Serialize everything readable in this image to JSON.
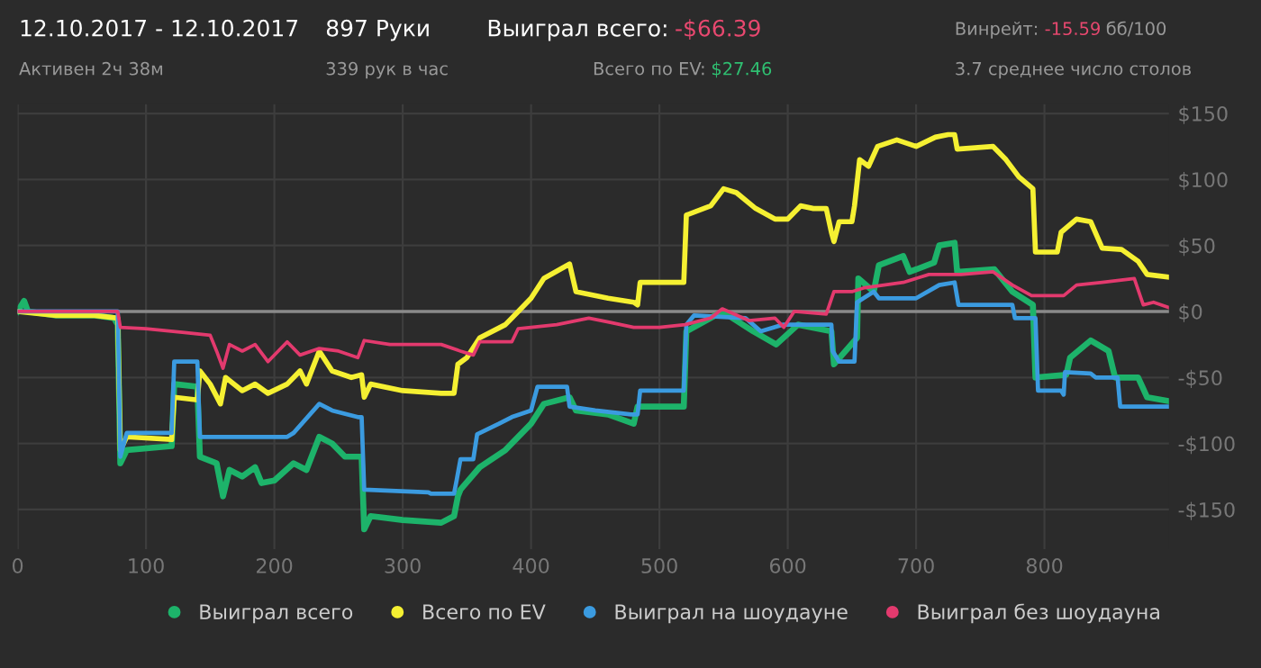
{
  "chart_data": {
    "type": "line",
    "xlim": [
      0,
      897
    ],
    "ylim": [
      -180,
      157
    ],
    "xticks": [
      0,
      100,
      200,
      300,
      400,
      500,
      600,
      700,
      800
    ],
    "yticks": [
      {
        "value": 150,
        "label": "$150"
      },
      {
        "value": 100,
        "label": "$100"
      },
      {
        "value": 50,
        "label": "$50"
      },
      {
        "value": 0,
        "label": "$0"
      },
      {
        "value": -50,
        "label": "-$50"
      },
      {
        "value": -100,
        "label": "-$100"
      },
      {
        "value": -150,
        "label": "-$150"
      }
    ],
    "grid": true,
    "legend": "bottom right",
    "marker": "none",
    "line_style": "solid",
    "ref_lines": [
      {
        "axis": "y",
        "value": 0,
        "color": "#8a8a8a"
      }
    ],
    "annotations": [
      "12.10.2017 - 12.10.2017",
      "Активен 2ч 38м",
      "897 Руки",
      "339 рук в час",
      "Выиграл всего:",
      "-$66.39",
      "Всего по EV:",
      "$27.46",
      "Винрейт:",
      "-15.59",
      "бб/100",
      "3.7 среднее число столов"
    ],
    "series": [
      {
        "name": "Выиграл всего",
        "color": "#1db36a",
        "x": [
          0,
          5,
          8,
          30,
          60,
          75,
          78,
          80,
          85,
          120,
          122,
          140,
          142,
          155,
          160,
          165,
          175,
          185,
          190,
          200,
          215,
          225,
          235,
          245,
          255,
          268,
          270,
          275,
          300,
          330,
          340,
          343,
          345,
          360,
          380,
          400,
          410,
          430,
          435,
          460,
          480,
          483,
          519,
          521,
          549,
          573,
          591,
          608,
          634,
          636,
          654,
          655,
          667,
          671,
          690,
          695,
          714,
          718,
          730,
          732,
          761,
          775,
          791,
          793,
          817,
          820,
          836,
          850,
          855,
          873,
          880,
          897
        ],
        "values": [
          0,
          8,
          0,
          -3,
          -3,
          -5,
          -10,
          -115,
          -105,
          -102,
          -55,
          -57,
          -110,
          -115,
          -140,
          -120,
          -125,
          -118,
          -130,
          -128,
          -115,
          -120,
          -95,
          -100,
          -110,
          -110,
          -165,
          -155,
          -158,
          -160,
          -155,
          -140,
          -135,
          -118,
          -105,
          -85,
          -70,
          -65,
          -75,
          -78,
          -85,
          -72,
          -72,
          -15,
          0,
          -15,
          -25,
          -10,
          -15,
          -40,
          -20,
          25,
          15,
          35,
          42,
          30,
          37,
          50,
          52,
          30,
          32,
          15,
          5,
          -50,
          -48,
          -35,
          -22,
          -30,
          -50,
          -50,
          -65,
          -68
        ]
      },
      {
        "name": "Всего по EV",
        "color": "#f5f032",
        "x": [
          0,
          30,
          60,
          78,
          80,
          85,
          120,
          122,
          140,
          142,
          150,
          158,
          162,
          175,
          185,
          195,
          210,
          220,
          225,
          235,
          245,
          260,
          268,
          270,
          275,
          300,
          330,
          340,
          343,
          350,
          360,
          380,
          390,
          400,
          410,
          430,
          435,
          460,
          480,
          483,
          485,
          519,
          521,
          540,
          550,
          560,
          575,
          590,
          600,
          610,
          620,
          630,
          634,
          636,
          640,
          650,
          652,
          656,
          663,
          670,
          685,
          700,
          715,
          725,
          730,
          732,
          760,
          770,
          780,
          791,
          793,
          810,
          813,
          825,
          836,
          845,
          860,
          873,
          880,
          897
        ],
        "values": [
          0,
          -3,
          -3,
          -5,
          -105,
          -95,
          -97,
          -65,
          -67,
          -45,
          -55,
          -70,
          -50,
          -60,
          -55,
          -62,
          -55,
          -45,
          -55,
          -30,
          -45,
          -50,
          -48,
          -65,
          -55,
          -60,
          -62,
          -62,
          -40,
          -35,
          -20,
          -10,
          0,
          10,
          25,
          36,
          15,
          10,
          7,
          5,
          22,
          22,
          73,
          80,
          93,
          90,
          78,
          70,
          70,
          80,
          78,
          78,
          60,
          53,
          68,
          68,
          80,
          115,
          110,
          125,
          130,
          125,
          132,
          134,
          134,
          123,
          125,
          115,
          102,
          93,
          45,
          45,
          60,
          70,
          68,
          48,
          47,
          38,
          28,
          26
        ]
      },
      {
        "name": "Выиграл на шоудауне",
        "color": "#3b9be0",
        "x": [
          0,
          78,
          80,
          85,
          120,
          122,
          140,
          142,
          210,
          215,
          235,
          245,
          265,
          268,
          270,
          320,
          322,
          340,
          342,
          345,
          355,
          358,
          375,
          385,
          400,
          405,
          428,
          430,
          450,
          478,
          483,
          485,
          519,
          521,
          527,
          567,
          573,
          579,
          596,
          634,
          635,
          640,
          652,
          654,
          667,
          671,
          700,
          718,
          730,
          733,
          775,
          777,
          793,
          795,
          813,
          815,
          816,
          836,
          840,
          857,
          859,
          897
        ],
        "values": [
          0,
          0,
          -110,
          -92,
          -92,
          -38,
          -38,
          -95,
          -95,
          -92,
          -70,
          -75,
          -80,
          -80,
          -135,
          -137,
          -138,
          -138,
          -128,
          -112,
          -112,
          -93,
          -85,
          -80,
          -75,
          -57,
          -57,
          -72,
          -75,
          -78,
          -78,
          -60,
          -60,
          -10,
          -3,
          -5,
          -10,
          -15,
          -10,
          -10,
          -30,
          -38,
          -38,
          7,
          15,
          10,
          10,
          20,
          22,
          5,
          5,
          -5,
          -5,
          -60,
          -60,
          -63,
          -46,
          -47,
          -50,
          -50,
          -72,
          -72
        ]
      },
      {
        "name": "Выиграл без шоудауна",
        "color": "#e33a6e",
        "x": [
          0,
          78,
          80,
          100,
          130,
          150,
          155,
          160,
          165,
          175,
          185,
          195,
          210,
          220,
          235,
          250,
          265,
          270,
          290,
          330,
          345,
          355,
          360,
          385,
          390,
          420,
          445,
          460,
          480,
          500,
          520,
          540,
          549,
          570,
          590,
          597,
          605,
          630,
          636,
          650,
          660,
          690,
          710,
          735,
          760,
          775,
          790,
          815,
          825,
          845,
          870,
          877,
          885,
          897
        ],
        "values": [
          0,
          0,
          -12,
          -13,
          -16,
          -18,
          -30,
          -43,
          -25,
          -30,
          -25,
          -38,
          -23,
          -33,
          -28,
          -30,
          -35,
          -22,
          -25,
          -25,
          -30,
          -33,
          -23,
          -23,
          -13,
          -10,
          -5,
          -8,
          -12,
          -12,
          -10,
          -5,
          2,
          -7,
          -5,
          -12,
          0,
          -2,
          15,
          15,
          18,
          22,
          28,
          28,
          30,
          20,
          12,
          12,
          20,
          22,
          25,
          5,
          7,
          3
        ]
      }
    ]
  }
}
